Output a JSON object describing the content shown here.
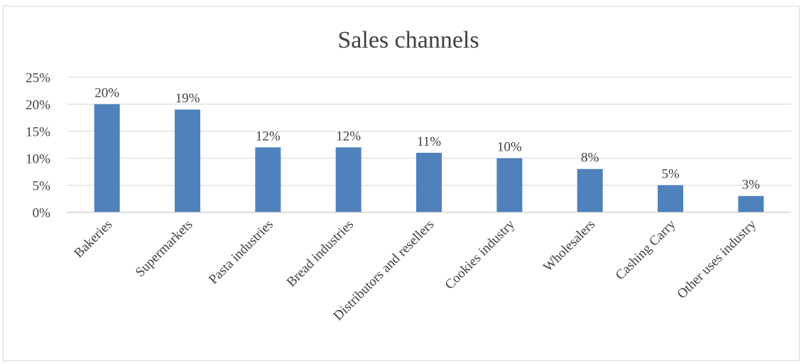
{
  "chart_data": {
    "type": "bar",
    "title": "Sales channels",
    "xlabel": "",
    "ylabel": "",
    "categories": [
      "Bakeries",
      "Supermarkets",
      "Pasta industries",
      "Bread industries",
      "Distributors and resellers",
      "Cookies industry",
      "Wholesalers",
      "Cashing Carry",
      "Other uses industry"
    ],
    "values": [
      20,
      19,
      12,
      12,
      11,
      10,
      8,
      5,
      3
    ],
    "data_labels": [
      "20%",
      "19%",
      "12%",
      "12%",
      "11%",
      "10%",
      "8%",
      "5%",
      "3%"
    ],
    "ylim": [
      0,
      25
    ],
    "y_ticks": [
      0,
      5,
      10,
      15,
      20,
      25
    ],
    "y_tick_labels": [
      "0%",
      "5%",
      "10%",
      "15%",
      "20%",
      "25%"
    ],
    "grid": true,
    "legend": "none",
    "bar_color": "#4f81bd"
  }
}
